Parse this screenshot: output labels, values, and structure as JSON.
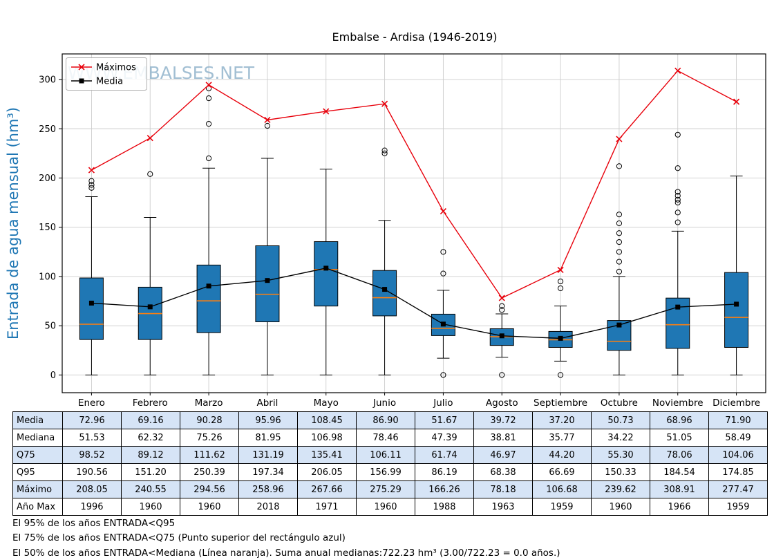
{
  "title": "Embalse - Ardisa (1946-2019)",
  "watermark": "WWW.EMBALSES.NET",
  "ylabel": "Entrada de agua mensual (hm³)",
  "legend": {
    "maximos": "Máximos",
    "media": "Media"
  },
  "chart_data": {
    "type": "boxplot",
    "categories": [
      "Enero",
      "Febrero",
      "Marzo",
      "Abril",
      "Mayo",
      "Junio",
      "Julio",
      "Agosto",
      "Septiembre",
      "Octubre",
      "Noviembre",
      "Diciembre"
    ],
    "ylim": [
      -18,
      326
    ],
    "yticks": [
      0,
      50,
      100,
      150,
      200,
      250,
      300
    ],
    "grid": true,
    "colors": {
      "box": "#1f77b4",
      "median": "#ff7f0e",
      "max_line": "#e8000b",
      "media_line": "#000000",
      "ylabel": "#1f77b4",
      "watermark": "#92b4cc",
      "table_shade": "#d6e4f6"
    },
    "boxes": [
      {
        "q1": 36,
        "median": 51.53,
        "q3": 98.52,
        "whisker_low": 0,
        "whisker_high": 181,
        "outliers": [
          190,
          193,
          197
        ]
      },
      {
        "q1": 36,
        "median": 62.32,
        "q3": 89.12,
        "whisker_low": 0,
        "whisker_high": 160,
        "outliers": [
          204
        ]
      },
      {
        "q1": 43,
        "median": 75.26,
        "q3": 111.62,
        "whisker_low": 0,
        "whisker_high": 210,
        "outliers": [
          220,
          255,
          281,
          291
        ]
      },
      {
        "q1": 54,
        "median": 81.95,
        "q3": 131.19,
        "whisker_low": 0,
        "whisker_high": 220,
        "outliers": [
          253
        ]
      },
      {
        "q1": 70,
        "median": 106.98,
        "q3": 135.41,
        "whisker_low": 0,
        "whisker_high": 209,
        "outliers": []
      },
      {
        "q1": 60,
        "median": 78.46,
        "q3": 106.11,
        "whisker_low": 0,
        "whisker_high": 157,
        "outliers": [
          225,
          228
        ]
      },
      {
        "q1": 40,
        "median": 47.39,
        "q3": 61.74,
        "whisker_low": 17,
        "whisker_high": 86,
        "outliers": [
          0,
          103,
          125
        ]
      },
      {
        "q1": 30,
        "median": 38.81,
        "q3": 46.97,
        "whisker_low": 18,
        "whisker_high": 62,
        "outliers": [
          0,
          66,
          70
        ]
      },
      {
        "q1": 28,
        "median": 35.77,
        "q3": 44.2,
        "whisker_low": 14,
        "whisker_high": 70,
        "outliers": [
          0,
          88,
          95
        ]
      },
      {
        "q1": 25,
        "median": 34.22,
        "q3": 55.3,
        "whisker_low": 0,
        "whisker_high": 100,
        "outliers": [
          105,
          115,
          125,
          135,
          144,
          154,
          163,
          212
        ]
      },
      {
        "q1": 27,
        "median": 51.05,
        "q3": 78.06,
        "whisker_low": 0,
        "whisker_high": 146,
        "outliers": [
          155,
          165,
          175,
          178,
          182,
          186,
          210,
          244
        ]
      },
      {
        "q1": 28,
        "median": 58.49,
        "q3": 104.06,
        "whisker_low": 0,
        "whisker_high": 202,
        "outliers": []
      }
    ],
    "series": [
      {
        "name": "Máximos",
        "color": "#e8000b",
        "marker": "x",
        "values": [
          208.05,
          240.55,
          294.56,
          258.96,
          267.66,
          275.29,
          166.26,
          78.18,
          106.68,
          239.62,
          308.91,
          277.47
        ]
      },
      {
        "name": "Media",
        "color": "#000000",
        "marker": "square",
        "values": [
          72.96,
          69.16,
          90.28,
          95.96,
          108.45,
          86.9,
          51.67,
          39.72,
          37.2,
          50.73,
          68.96,
          71.9
        ]
      }
    ]
  },
  "table": {
    "rows": [
      {
        "label": "Media",
        "values": [
          "72.96",
          "69.16",
          "90.28",
          "95.96",
          "108.45",
          "86.90",
          "51.67",
          "39.72",
          "37.20",
          "50.73",
          "68.96",
          "71.90"
        ]
      },
      {
        "label": "Mediana",
        "values": [
          "51.53",
          "62.32",
          "75.26",
          "81.95",
          "106.98",
          "78.46",
          "47.39",
          "38.81",
          "35.77",
          "34.22",
          "51.05",
          "58.49"
        ]
      },
      {
        "label": "Q75",
        "values": [
          "98.52",
          "89.12",
          "111.62",
          "131.19",
          "135.41",
          "106.11",
          "61.74",
          "46.97",
          "44.20",
          "55.30",
          "78.06",
          "104.06"
        ]
      },
      {
        "label": "Q95",
        "values": [
          "190.56",
          "151.20",
          "250.39",
          "197.34",
          "206.05",
          "156.99",
          "86.19",
          "68.38",
          "66.69",
          "150.33",
          "184.54",
          "174.85"
        ]
      },
      {
        "label": "Máximo",
        "values": [
          "208.05",
          "240.55",
          "294.56",
          "258.96",
          "267.66",
          "275.29",
          "166.26",
          "78.18",
          "106.68",
          "239.62",
          "308.91",
          "277.47"
        ]
      },
      {
        "label": "Año Max",
        "values": [
          "1996",
          "1960",
          "1960",
          "2018",
          "1971",
          "1960",
          "1988",
          "1963",
          "1959",
          "1960",
          "1966",
          "1959"
        ]
      }
    ]
  },
  "footer": [
    "El 95% de los años ENTRADA<Q95",
    "El 75% de los años ENTRADA<Q75 (Punto superior del rectángulo azul)",
    "El 50% de los años ENTRADA<Mediana (Línea naranja). Suma anual medianas:722.23 hm³ (3.00/722.23 = 0.0 años.)"
  ]
}
